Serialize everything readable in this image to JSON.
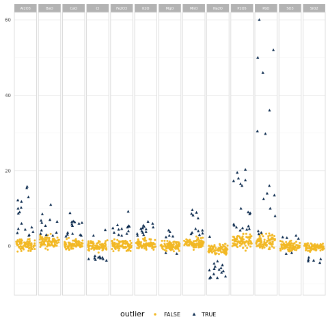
{
  "chart_data": {
    "type": "scatter",
    "facets": [
      "Al2O3",
      "BaO",
      "CaO",
      "Cl",
      "Fe2O3",
      "K2O",
      "MgO",
      "MnO",
      "Na2O",
      "P2O5",
      "PbO",
      "SO3",
      "SiO2"
    ],
    "ylim": [
      -13,
      62
    ],
    "yticks": [
      0,
      20,
      40,
      60
    ],
    "grid": true,
    "legend": {
      "title": "outlier",
      "placement": "bottom",
      "entries": [
        {
          "label": "FALSE",
          "shape": "circle",
          "color": "#f2b824"
        },
        {
          "label": "TRUE",
          "shape": "triangle",
          "color": "#0b2a4e"
        }
      ]
    },
    "inlier_band": {
      "Al2O3": [
        -2,
        2.5
      ],
      "BaO": [
        -1.5,
        3.5
      ],
      "CaO": [
        -1.5,
        2.5
      ],
      "Cl": [
        -2,
        2
      ],
      "Fe2O3": [
        -2,
        2.5
      ],
      "K2O": [
        -1.5,
        2.5
      ],
      "MgO": [
        -2,
        2
      ],
      "MnO": [
        -1.5,
        3
      ],
      "Na2O": [
        -3,
        1.5
      ],
      "P2O5": [
        -1.5,
        4
      ],
      "PbO": [
        -1.5,
        4
      ],
      "SO3": [
        -2,
        2
      ],
      "SiO2": [
        -2,
        1.5
      ]
    },
    "outliers": {
      "Al2O3": [
        15.8,
        15.4,
        13,
        12.2,
        11.8,
        10.2,
        10,
        9,
        8.7,
        6,
        5,
        4.6,
        4.4,
        3.8,
        3.5,
        3,
        2.8
      ],
      "BaO": [
        11,
        8.5,
        7,
        6.8,
        6.5,
        6.2,
        5.4,
        4.2,
        3.6,
        3.3,
        3,
        2.8
      ],
      "CaO": [
        8.8,
        6.6,
        6.4,
        6.2,
        6,
        5.8,
        5.4,
        3.6,
        3.3,
        3.1,
        3,
        2.8,
        2.6,
        6.4
      ],
      "Cl": [
        4.3,
        2.8,
        -2.8,
        -3,
        -3.2,
        -3.4,
        -3.6,
        -3.8,
        -3.4,
        -3,
        -2.6,
        -3.2
      ],
      "Fe2O3": [
        9.2,
        5.6,
        5.4,
        5.2,
        5,
        4.8,
        4.6,
        4.4,
        4,
        3.6,
        3.3,
        3,
        2.8
      ],
      "K2O": [
        6.5,
        6,
        5.5,
        5.2,
        5,
        4.8,
        4.6,
        4.5,
        4,
        3.8,
        3.6,
        3.3,
        3,
        2.8
      ],
      "MgO": [
        4.2,
        3.8,
        2.8,
        2.6,
        2.4,
        -1.8,
        -2
      ],
      "MnO": [
        9.6,
        8.9,
        8.6,
        8.2,
        7.4,
        4.6,
        4.2,
        4,
        3.6,
        3.4,
        3.2,
        3
      ],
      "Na2O": [
        2.5,
        -4,
        -4.6,
        -5,
        -5.4,
        -5.8,
        -6,
        -6.2,
        -6.4,
        -6.6,
        -7,
        -7.4,
        -8,
        -8.3,
        -8.5,
        -8.2,
        -8.4
      ],
      "P2O5": [
        20.3,
        19.5,
        18,
        17.5,
        17.3,
        16.5,
        16,
        10,
        9,
        8.8,
        8.5,
        5.8,
        5.5,
        5.3,
        5,
        4.8,
        4.6,
        4.4,
        4.2
      ],
      "PbO": [
        60,
        52,
        50,
        46,
        36,
        30.5,
        29.8,
        16,
        14,
        13.5,
        12.5,
        10,
        8,
        4,
        3.6,
        3.2
      ],
      "SO3": [
        2.8,
        2.4,
        2.2,
        2,
        -1.8,
        -2
      ],
      "SiO2": [
        -3,
        -3.4,
        -3.6,
        -4,
        -4.4,
        -3.8
      ]
    }
  }
}
